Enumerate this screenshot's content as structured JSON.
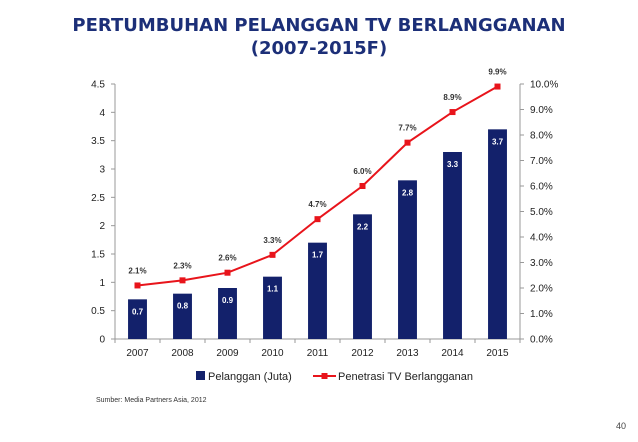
{
  "title_line1": "PERTUMBUHAN PELANGGAN TV BERLANGGANAN",
  "title_line2": "(2007-2015F)",
  "source": "Sumber: Media Partners Asia, 2012",
  "page_number": "40",
  "chart_data": {
    "type": "bar",
    "categories": [
      "2007",
      "2008",
      "2009",
      "2010",
      "2011",
      "2012",
      "2013",
      "2014",
      "2015"
    ],
    "series": [
      {
        "name": "Pelanggan (Juta)",
        "kind": "bar",
        "axis": "left",
        "values": [
          0.7,
          0.8,
          0.9,
          1.1,
          1.7,
          2.2,
          2.8,
          3.3,
          3.7
        ],
        "labels": [
          "0.7",
          "0.8",
          "0.9",
          "1.1",
          "1.7",
          "2.2",
          "2.8",
          "3.3",
          "3.7"
        ],
        "color": "#13216b"
      },
      {
        "name": "Penetrasi TV Berlangganan",
        "kind": "line",
        "axis": "right",
        "values": [
          2.1,
          2.3,
          2.6,
          3.3,
          4.7,
          6.0,
          7.7,
          8.9,
          9.9
        ],
        "labels": [
          "2.1%",
          "2.3%",
          "2.6%",
          "3.3%",
          "4.7%",
          "6.0%",
          "7.7%",
          "8.9%",
          "9.9%"
        ],
        "color": "#e8141b"
      }
    ],
    "y_left": {
      "min": 0,
      "max": 4.5,
      "ticks": [
        "0",
        "0.5",
        "1",
        "1.5",
        "2",
        "2.5",
        "3",
        "3.5",
        "4",
        "4.5"
      ]
    },
    "y_right": {
      "min": 0,
      "max": 10,
      "ticks": [
        "0.0%",
        "1.0%",
        "2.0%",
        "3.0%",
        "4.0%",
        "5.0%",
        "6.0%",
        "7.0%",
        "8.0%",
        "9.0%",
        "10.0%"
      ]
    },
    "legend": "bottom",
    "grid": false
  }
}
